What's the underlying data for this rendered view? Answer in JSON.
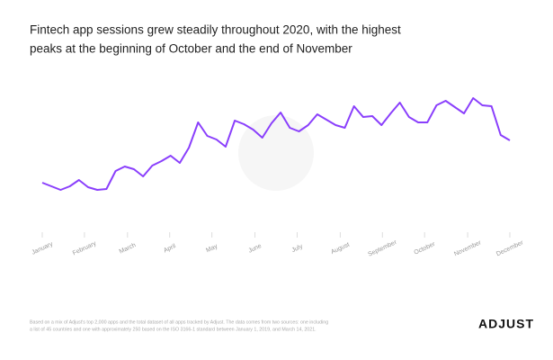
{
  "chart_data": {
    "type": "line",
    "title": [
      "Fintech app sessions grew steadily throughout 2020, with the highest",
      "peaks at the beginning of October and the end of November"
    ],
    "series": [
      {
        "color": "#8a3ffc",
        "values": [
          57,
          53,
          49,
          53,
          60,
          52,
          49,
          50,
          70,
          75,
          72,
          64,
          76,
          81,
          87,
          79,
          96,
          124,
          109,
          105,
          97,
          126,
          122,
          116,
          107,
          123,
          135,
          118,
          114,
          121,
          133,
          127,
          121,
          118,
          142,
          130,
          131,
          121,
          134,
          146,
          130,
          124,
          124,
          143,
          148,
          141,
          134,
          151,
          143,
          142,
          110,
          104
        ]
      }
    ],
    "xlim": [
      0,
      51
    ],
    "ylim": [
      0,
      160
    ],
    "xticks": [
      {
        "value": 0,
        "label": "January"
      },
      {
        "value": 4.6,
        "label": "February"
      },
      {
        "value": 9.3,
        "label": "March"
      },
      {
        "value": 13.9,
        "label": "April"
      },
      {
        "value": 18.5,
        "label": "May"
      },
      {
        "value": 23.2,
        "label": "June"
      },
      {
        "value": 27.8,
        "label": "July"
      },
      {
        "value": 32.5,
        "label": "August"
      },
      {
        "value": 37.1,
        "label": "September"
      },
      {
        "value": 41.7,
        "label": "October"
      },
      {
        "value": 46.4,
        "label": "November"
      },
      {
        "value": 51,
        "label": "December"
      }
    ],
    "note": [
      "Based on a mix of Adjust's top 2,000 apps and the total dataset of all apps tracked by Adjust. The data comes from two sources: one including",
      "a list of 45 countries and one with approximately 250 based on the ISO 3166-1 standard between January 1, 2019, and March 14, 2021."
    ],
    "logo": "ADJUST"
  }
}
